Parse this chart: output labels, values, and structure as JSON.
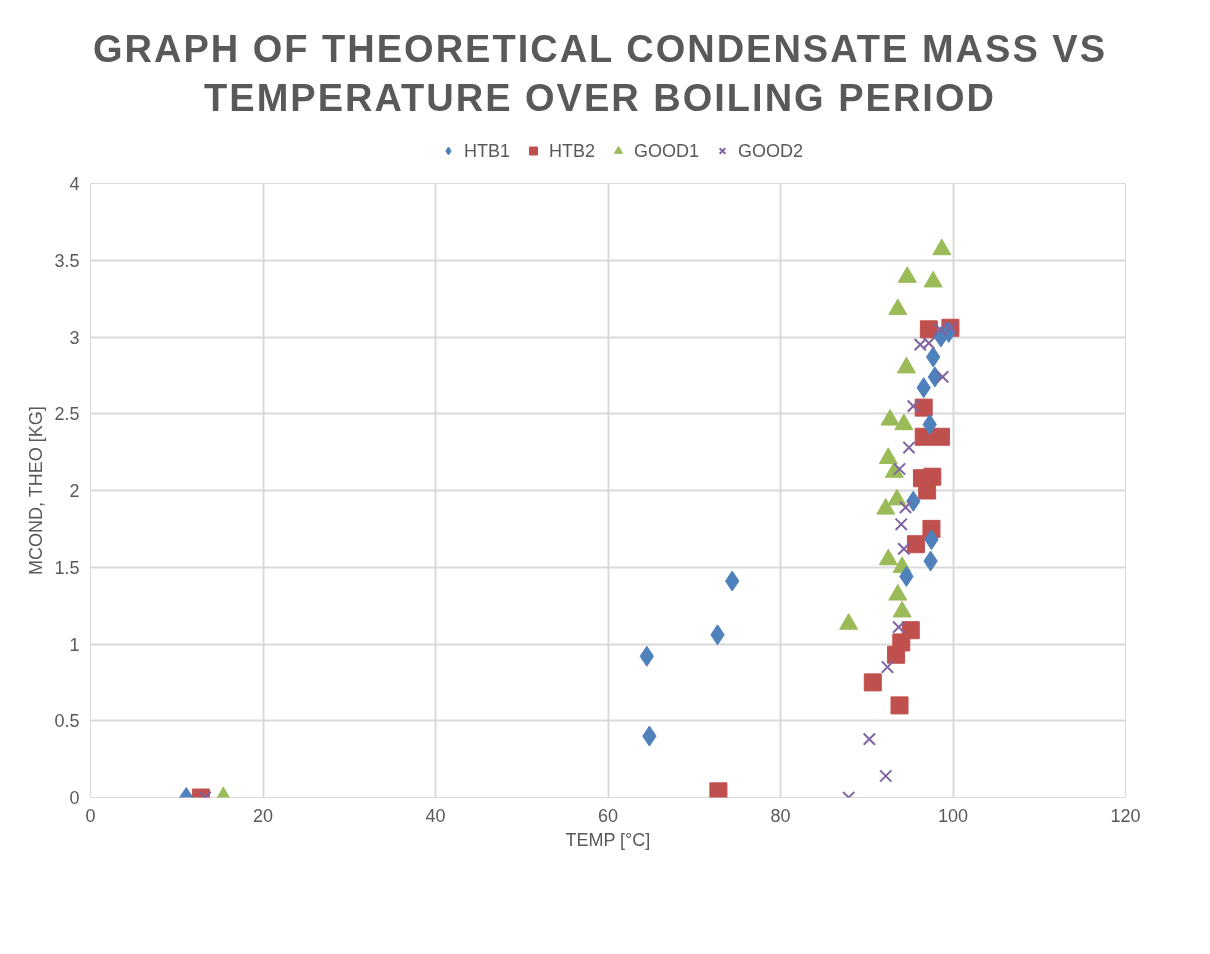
{
  "chart_data": {
    "type": "scatter",
    "title": "GRAPH OF THEORETICAL CONDENSATE MASS VS TEMPERATURE OVER BOILING PERIOD",
    "xlabel": "TEMP [°C]",
    "ylabel": "MCOND, THEO [KG]",
    "xlim": [
      0,
      120
    ],
    "xticks": [
      0,
      20,
      40,
      60,
      80,
      100,
      120
    ],
    "ylim": [
      0,
      4
    ],
    "yticks": [
      0,
      0.5,
      1,
      1.5,
      2,
      2.5,
      3,
      3.5,
      4
    ],
    "grid": true,
    "legend": "top",
    "series": [
      {
        "name": "HTB1",
        "color": "#4f81bd",
        "marker": "diamond",
        "x": [
          11.1,
          64.8,
          64.5,
          72.7,
          74.4,
          94.6,
          97.4,
          97.5,
          95.4,
          97.3,
          96.6,
          97.9,
          97.7,
          98.6,
          99.5
        ],
        "values": [
          0,
          0.4,
          0.92,
          1.06,
          1.41,
          1.44,
          1.54,
          1.68,
          1.93,
          2.43,
          2.67,
          2.74,
          2.87,
          3.0,
          3.03
        ]
      },
      {
        "name": "HTB2",
        "color": "#c0504d",
        "marker": "square",
        "x": [
          12.8,
          72.8,
          93.8,
          90.7,
          93.4,
          94.0,
          95.1,
          95.7,
          97.5,
          97.0,
          96.4,
          97.6,
          96.6,
          98.6,
          96.6,
          97.2,
          99.7
        ],
        "values": [
          0,
          0.04,
          0.6,
          0.75,
          0.93,
          1.01,
          1.09,
          1.65,
          1.75,
          2.0,
          2.08,
          2.09,
          2.35,
          2.35,
          2.54,
          3.05,
          3.06
        ]
      },
      {
        "name": "GOOD1",
        "color": "#9bbb59",
        "marker": "triangle",
        "x": [
          15.4,
          87.9,
          94.1,
          93.6,
          94.1,
          92.5,
          92.2,
          93.5,
          93.2,
          92.5,
          94.3,
          92.7,
          94.6,
          93.6,
          97.7,
          94.7,
          98.7
        ],
        "values": [
          0,
          1.13,
          1.21,
          1.32,
          1.5,
          1.55,
          1.88,
          1.94,
          2.12,
          2.21,
          2.43,
          2.46,
          2.8,
          3.18,
          3.36,
          3.39,
          3.57
        ]
      },
      {
        "name": "GOOD2",
        "color": "#8064a2",
        "marker": "x",
        "x": [
          13.3,
          87.9,
          92.2,
          90.3,
          92.4,
          93.7,
          94.3,
          94.0,
          94.5,
          93.8,
          94.9,
          95.4,
          98.8,
          96.2,
          97.2,
          98.5,
          99.7
        ],
        "values": [
          0,
          0,
          0.14,
          0.38,
          0.85,
          1.11,
          1.62,
          1.78,
          1.89,
          2.14,
          2.28,
          2.55,
          2.74,
          2.95,
          2.96,
          3.05,
          3.06
        ]
      }
    ]
  }
}
